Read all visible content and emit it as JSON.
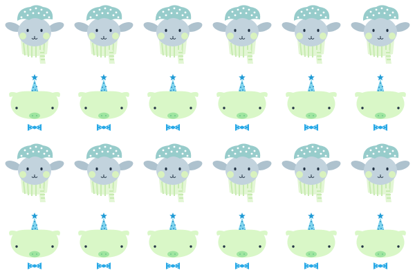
{
  "pattern": {
    "description_name": "sheep-and-pig-party-pattern",
    "columns": 6,
    "row_motifs": [
      "sheep",
      "pig",
      "sheep",
      "pig"
    ],
    "background_color": "#ffffff"
  },
  "colors": {
    "sheep_face": "#c2d3dd",
    "sheep_ear": "#aec2ce",
    "sheep_wool": "#97cccb",
    "sheep_wool_dots": "#ffffff",
    "sheep_cheek": "#d9f2bf",
    "sheep_scarf": "#e3f6d5",
    "sheep_scarf_stripe": "#c7ebb0",
    "pig_face": "#d9f7c7",
    "pig_snout": "#9fe5a0",
    "pig_hat": "#7fd4ee",
    "pig_hat_dots": "#2a8fc4",
    "pig_hat_star": "#1f9bd6",
    "pig_bowtie": "#27a8e6",
    "pig_bowtie_dots": "#ffffff",
    "eye": "#223344"
  },
  "icons": {
    "sheep": "sheep-face-icon",
    "pig": "pig-face-icon"
  }
}
